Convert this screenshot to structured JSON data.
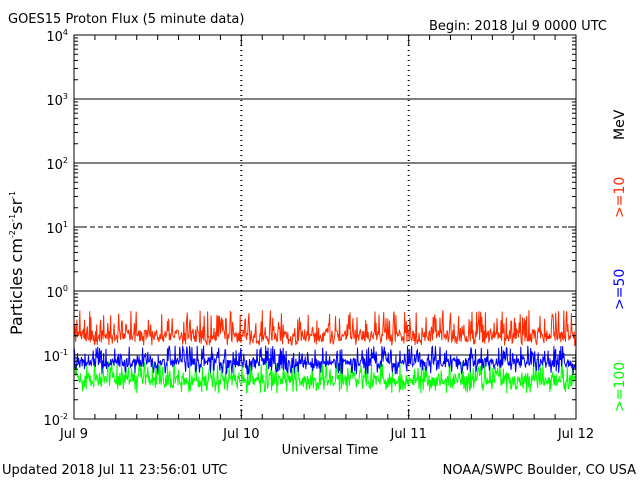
{
  "header": {
    "title": "GOES15 Proton Flux (5 minute data)",
    "begin": "Begin: 2018 Jul 9 0000 UTC"
  },
  "footer": {
    "updated": "Updated 2018 Jul 11 23:56:01 UTC",
    "credit": "NOAA/SWPC Boulder, CO USA"
  },
  "chart_data": {
    "type": "line",
    "title": "GOES15 Proton Flux (5 minute data)",
    "xlabel": "Universal Time",
    "ylabel": "Particles cm-2 s-1 sr-1",
    "ylabel_parts": {
      "main": "Particles cm",
      "e1": "-2",
      "s": "s",
      "e2": "-1",
      "sr": "sr",
      "e3": "-1"
    },
    "yscale": "log",
    "ylim": [
      0.01,
      10000
    ],
    "y_ticks": [
      {
        "base": "10",
        "exp": "4"
      },
      {
        "base": "10",
        "exp": "3"
      },
      {
        "base": "10",
        "exp": "2"
      },
      {
        "base": "10",
        "exp": "1"
      },
      {
        "base": "10",
        "exp": "0"
      },
      {
        "base": "10",
        "exp": "-1"
      },
      {
        "base": "10",
        "exp": "-2"
      }
    ],
    "x_ticks": [
      "Jul 9",
      "Jul 10",
      "Jul 11",
      "Jul 12"
    ],
    "xlim_days": [
      0,
      3
    ],
    "grid": true,
    "unit_label": "MeV",
    "series": [
      {
        "name": ">=10",
        "color": "#ff2a00",
        "baseline": 0.2,
        "range": [
          0.14,
          0.5
        ]
      },
      {
        "name": ">=50",
        "color": "#0000ff",
        "baseline": 0.075,
        "range": [
          0.05,
          0.14
        ]
      },
      {
        "name": ">=100",
        "color": "#00ff00",
        "baseline": 0.04,
        "range": [
          0.025,
          0.08
        ]
      }
    ]
  }
}
